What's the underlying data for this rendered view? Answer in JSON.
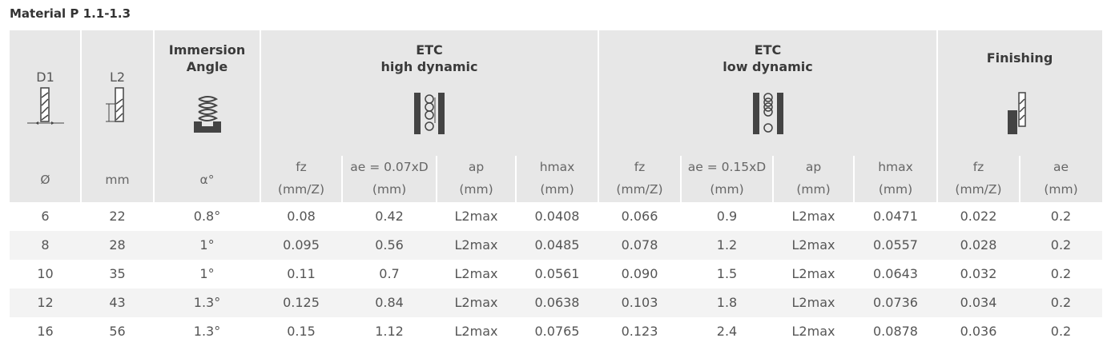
{
  "title": "Material P 1.1-1.3",
  "table": {
    "group_headers": [
      [
        "D1"
      ],
      [
        "L2"
      ],
      [
        "Immersion",
        "Angle"
      ],
      [
        "ETC",
        "high dynamic"
      ],
      [
        "ETC",
        "low dynamic"
      ],
      [
        "Finishing"
      ]
    ],
    "sub_headers": [
      [
        "Ø"
      ],
      [
        "mm"
      ],
      [
        "α°"
      ],
      [
        "fz",
        "(mm/Z)"
      ],
      [
        "ae = 0.07xD",
        "(mm)"
      ],
      [
        "ap",
        "(mm)"
      ],
      [
        "hmax",
        "(mm)"
      ],
      [
        "fz",
        "(mm/Z)"
      ],
      [
        "ae = 0.15xD",
        "(mm)"
      ],
      [
        "ap",
        "(mm)"
      ],
      [
        "hmax",
        "(mm)"
      ],
      [
        "fz",
        "(mm/Z)"
      ],
      [
        "ae",
        "(mm)"
      ]
    ],
    "rows": [
      [
        "6",
        "22",
        "0.8°",
        "0.08",
        "0.42",
        "L2max",
        "0.0408",
        "0.066",
        "0.9",
        "L2max",
        "0.0471",
        "0.022",
        "0.2"
      ],
      [
        "8",
        "28",
        "1°",
        "0.095",
        "0.56",
        "L2max",
        "0.0485",
        "0.078",
        "1.2",
        "L2max",
        "0.0557",
        "0.028",
        "0.2"
      ],
      [
        "10",
        "35",
        "1°",
        "0.11",
        "0.7",
        "L2max",
        "0.0561",
        "0.090",
        "1.5",
        "L2max",
        "0.0643",
        "0.032",
        "0.2"
      ],
      [
        "12",
        "43",
        "1.3°",
        "0.125",
        "0.84",
        "L2max",
        "0.0638",
        "0.103",
        "1.8",
        "L2max",
        "0.0736",
        "0.034",
        "0.2"
      ],
      [
        "16",
        "56",
        "1.3°",
        "0.15",
        "1.12",
        "L2max",
        "0.0765",
        "0.123",
        "2.4",
        "L2max",
        "0.0878",
        "0.036",
        "0.2"
      ]
    ]
  }
}
